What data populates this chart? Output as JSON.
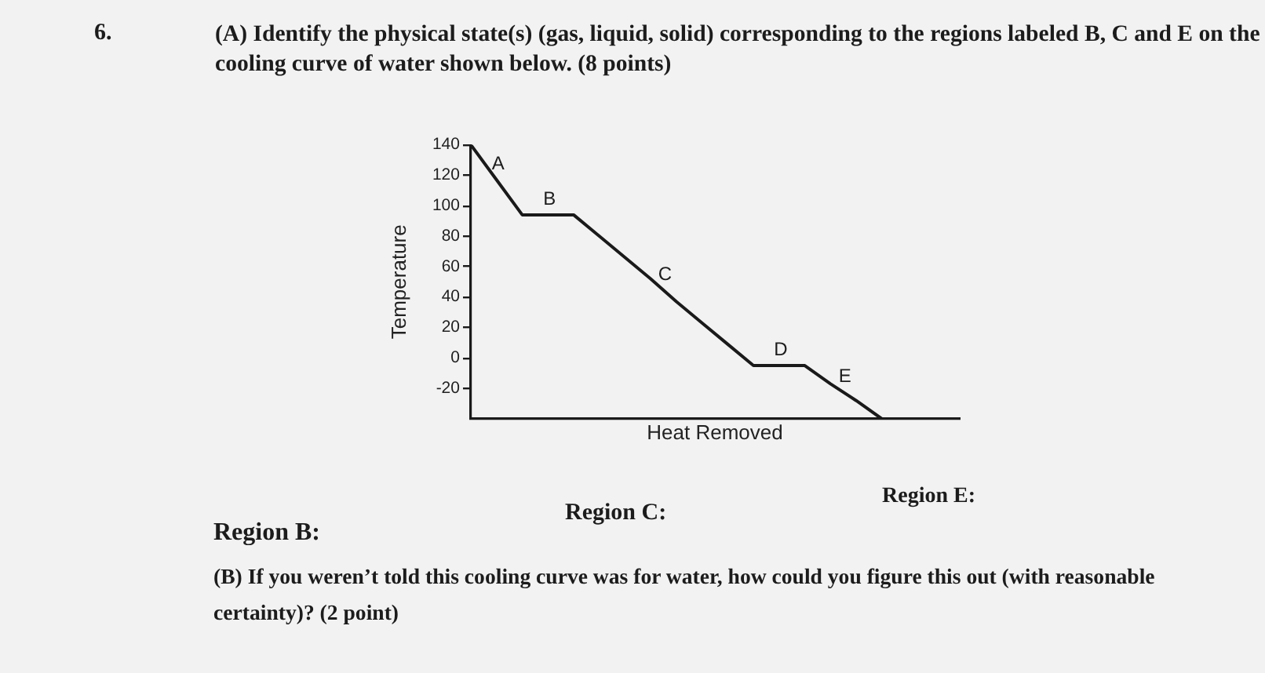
{
  "chart_data": {
    "type": "line",
    "title": "(A) Identify the physical state(s) (gas, liquid, solid) corresponding to the regions labeled B, C and E on the cooling curve of water shown below. (8 points)",
    "xlabel": "Heat Removed",
    "ylabel": "Temperature",
    "categories": [
      null,
      null,
      null,
      null,
      null,
      null,
      null,
      null,
      null,
      null,
      null,
      null,
      null,
      null,
      null,
      null,
      null,
      null,
      null,
      null
    ],
    "values": [
      140,
      117,
      94,
      94,
      94,
      80,
      66,
      52,
      37,
      23,
      9,
      -5,
      -5,
      -5,
      -17,
      -28,
      -40,
      null,
      null,
      null
    ],
    "color": "#1a1a1a",
    "ylim": [
      -40,
      140
    ],
    "yticks": [
      -20,
      0,
      20,
      40,
      60,
      80,
      100,
      120,
      140
    ],
    "grid": false,
    "legend": false,
    "marker": "none",
    "line_style": "solid",
    "tick_labels": "y",
    "annotations": [
      "6.",
      "A",
      "B",
      "C",
      "D",
      "E",
      "Region B:",
      "Region C:",
      "Region E:",
      "(B) If you weren’t told this cooling curve was for water, how could you figure this out (with reasonable certainty)? (2 point)"
    ]
  }
}
